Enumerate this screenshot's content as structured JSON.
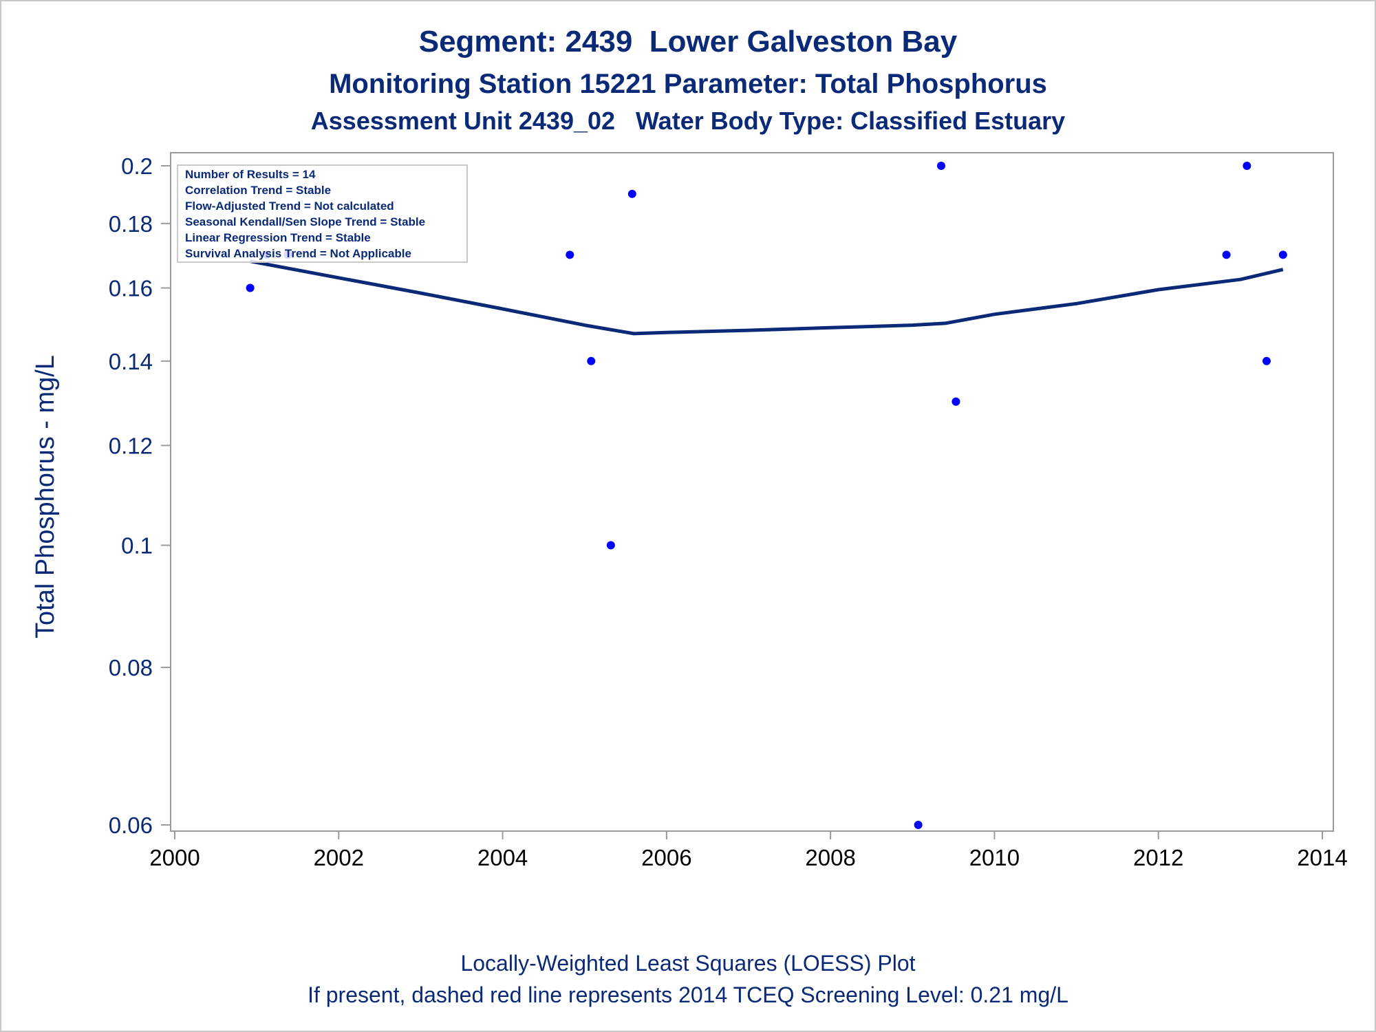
{
  "titles": {
    "line1": "Segment: 2439  Lower Galveston Bay",
    "line2": "Monitoring Station 15221 Parameter: Total Phosphorus",
    "line3": "Assessment Unit 2439_02   Water Body Type: Classified Estuary"
  },
  "footnotes": {
    "line1": "Locally-Weighted Least Squares (LOESS) Plot",
    "line2": "If present, dashed red line represents 2014 TCEQ Screening Level: 0.21 mg/L"
  },
  "info_box": [
    "Number of Results = 14",
    "Correlation Trend = Stable",
    "Flow-Adjusted Trend = Not calculated",
    "Seasonal Kendall/Sen Slope Trend = Stable",
    "Linear Regression Trend = Stable",
    "Survival Analysis Trend = Not Applicable"
  ],
  "colors": {
    "text": "#0a2a78",
    "points": "#0000ff",
    "loess": "#0a2a78",
    "axis": "#9a9a9a"
  },
  "chart_data": {
    "type": "scatter",
    "xlabel": "",
    "ylabel": "Total Phosphorus - mg/L",
    "y_scale": "log",
    "xlim": [
      2000,
      2014
    ],
    "ylim": [
      0.06,
      0.2
    ],
    "x_ticks": [
      2000,
      2002,
      2004,
      2006,
      2008,
      2010,
      2012,
      2014
    ],
    "y_ticks": [
      0.06,
      0.08,
      0.1,
      0.12,
      0.14,
      0.16,
      0.18,
      0.2
    ],
    "grid": false,
    "series": [
      {
        "type": "scatter",
        "points": [
          {
            "x": 2000.92,
            "y": 0.16
          },
          {
            "x": 2001.12,
            "y": 0.17
          },
          {
            "x": 2001.38,
            "y": 0.17
          },
          {
            "x": 2004.82,
            "y": 0.17
          },
          {
            "x": 2005.08,
            "y": 0.14
          },
          {
            "x": 2005.32,
            "y": 0.1
          },
          {
            "x": 2005.58,
            "y": 0.19
          },
          {
            "x": 2009.07,
            "y": 0.06
          },
          {
            "x": 2009.35,
            "y": 0.2
          },
          {
            "x": 2009.53,
            "y": 0.13
          },
          {
            "x": 2012.83,
            "y": 0.17
          },
          {
            "x": 2013.08,
            "y": 0.2
          },
          {
            "x": 2013.32,
            "y": 0.14
          },
          {
            "x": 2013.52,
            "y": 0.17
          }
        ]
      },
      {
        "type": "line",
        "points": [
          {
            "x": 2000.92,
            "y": 0.168
          },
          {
            "x": 2002.0,
            "y": 0.163
          },
          {
            "x": 2003.0,
            "y": 0.1585
          },
          {
            "x": 2004.0,
            "y": 0.154
          },
          {
            "x": 2005.0,
            "y": 0.1495
          },
          {
            "x": 2005.6,
            "y": 0.1472
          },
          {
            "x": 2006.0,
            "y": 0.1475
          },
          {
            "x": 2007.0,
            "y": 0.1481
          },
          {
            "x": 2008.0,
            "y": 0.1488
          },
          {
            "x": 2009.0,
            "y": 0.1495
          },
          {
            "x": 2009.4,
            "y": 0.15
          },
          {
            "x": 2010.0,
            "y": 0.1525
          },
          {
            "x": 2011.0,
            "y": 0.1555
          },
          {
            "x": 2012.0,
            "y": 0.1595
          },
          {
            "x": 2013.0,
            "y": 0.1625
          },
          {
            "x": 2013.52,
            "y": 0.1655
          }
        ]
      }
    ]
  }
}
